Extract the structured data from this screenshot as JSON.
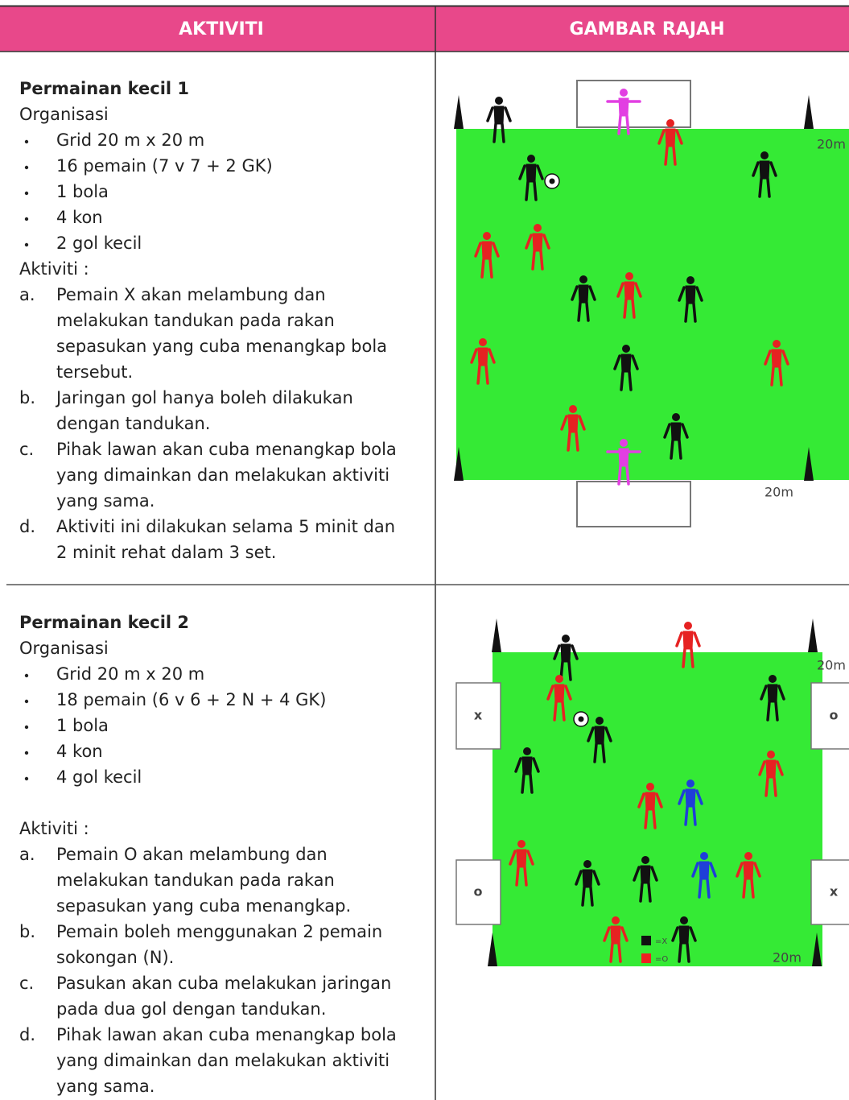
{
  "header": {
    "col1": "AKTIVITI",
    "col2": "GAMBAR RAJAH"
  },
  "sections": [
    {
      "title": "Permainan kecil 1",
      "organisation_label": "Organisasi",
      "items": [
        "Grid 20 m x 20 m",
        "16 pemain (7 v 7 + 2 GK)",
        "1 bola",
        "4 kon",
        "2 gol kecil"
      ],
      "activity_label": "Aktiviti :",
      "steps": [
        {
          "marker": "a.",
          "lines": [
            "Pemain X akan melambung dan",
            "melakukan tandukan pada rakan",
            "sepasukan yang cuba menangkap bola",
            "tersebut."
          ]
        },
        {
          "marker": "b.",
          "lines": [
            "Jaringan gol hanya boleh dilakukan",
            "dengan tandukan."
          ]
        },
        {
          "marker": "c.",
          "lines": [
            "Pihak lawan akan cuba menangkap bola",
            "yang dimainkan dan melakukan aktiviti",
            "yang sama."
          ]
        },
        {
          "marker": "d.",
          "lines": [
            "Aktiviti ini dilakukan selama 5 minit dan",
            "2 minit rehat dalam 3 set."
          ]
        }
      ],
      "diagram": {
        "side_label": "20m",
        "bottom_label": "20m"
      }
    },
    {
      "title": "Permainan kecil 2",
      "organisation_label": "Organisasi",
      "items": [
        "Grid 20 m x 20 m",
        "18 pemain (6 v 6 + 2 N + 4 GK)",
        "1 bola",
        "4 kon",
        "4 gol kecil"
      ],
      "activity_label": "Aktiviti :",
      "steps": [
        {
          "marker": "a.",
          "lines": [
            "Pemain O akan melambung dan",
            "melakukan tandukan pada rakan",
            "sepasukan yang cuba menangkap."
          ]
        },
        {
          "marker": "b.",
          "lines": [
            "Pemain boleh menggunakan 2 pemain",
            "sokongan (N)."
          ]
        },
        {
          "marker": "c.",
          "lines": [
            "Pasukan akan cuba melakukan jaringan",
            "pada  dua gol dengan tandukan."
          ]
        },
        {
          "marker": "d.",
          "lines": [
            "Pihak lawan akan cuba menangkap bola",
            "yang dimainkan dan melakukan aktiviti",
            "yang sama."
          ]
        }
      ],
      "diagram": {
        "side_label": "20m",
        "bottom_label": "20m",
        "goal_labels": [
          "x",
          "o",
          "o",
          "x"
        ],
        "legend": [
          "=X",
          "=O"
        ]
      }
    }
  ]
}
